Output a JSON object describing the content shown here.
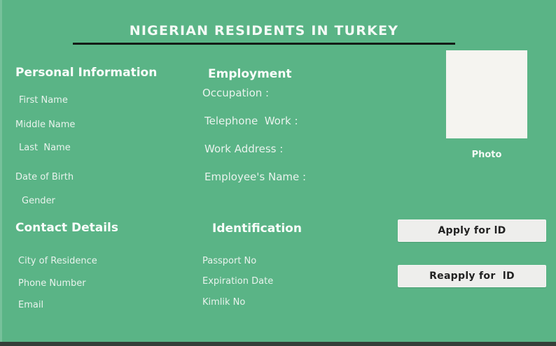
{
  "theme": {
    "background": "#5ab486",
    "title_color": "#f4faf6",
    "label_color": "#e9f3ed",
    "underline_color": "#141c17",
    "photo_box_color": "#f5f4f0",
    "button_bg": "#eeeeec",
    "button_text": "#222222",
    "bottom_bar": "#343e38"
  },
  "header": {
    "title": "NIGERIAN RESIDENTS IN TURKEY"
  },
  "photo": {
    "label": "Photo"
  },
  "sections": {
    "personal": {
      "title": "Personal Information",
      "fields": [
        "First Name",
        "Middle Name",
        "Last  Name",
        "Date of Birth",
        "Gender"
      ]
    },
    "employment": {
      "title": "Employment",
      "fields": [
        "Occupation :",
        "Telephone  Work :",
        "Work Address :",
        "Employee's Name :"
      ]
    },
    "contact": {
      "title": "Contact Details",
      "fields": [
        "City of Residence",
        "Phone Number",
        "Email"
      ]
    },
    "identification": {
      "title": "Identification",
      "fields": [
        "Passport No",
        "Expiration Date",
        "Kimlik No"
      ]
    }
  },
  "buttons": {
    "apply_label": "Apply for lD",
    "reapply_label": "Reapply for  lD"
  }
}
